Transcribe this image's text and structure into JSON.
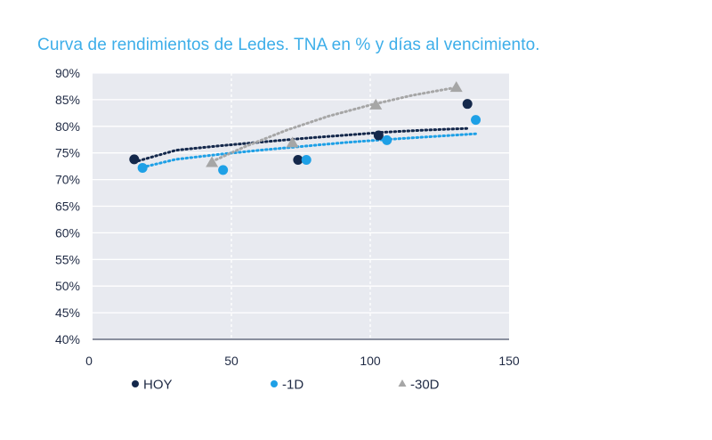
{
  "chart_data": {
    "type": "scatter",
    "title": "Curva de rendimientos de Ledes. TNA en % y días al vencimiento.",
    "xlabel": "",
    "ylabel": "",
    "xlim": [
      0,
      150
    ],
    "ylim": [
      40,
      90
    ],
    "x_ticks": [
      0,
      50,
      100,
      150
    ],
    "y_ticks": [
      40,
      45,
      50,
      55,
      60,
      65,
      70,
      75,
      80,
      85,
      90
    ],
    "y_tick_labels": [
      "40%",
      "45%",
      "50%",
      "55%",
      "60%",
      "65%",
      "70%",
      "75%",
      "80%",
      "85%",
      "90%"
    ],
    "x_tick_labels": [
      "0",
      "50",
      "100",
      "150"
    ],
    "grid": true,
    "legend_position": "bottom",
    "series": [
      {
        "name": "HOY",
        "marker": "circle",
        "color": "#14284b",
        "points": [
          [
            15,
            73.8
          ],
          [
            74,
            73.7
          ],
          [
            103,
            78.3
          ],
          [
            135,
            84.2
          ]
        ],
        "trend": [
          [
            15,
            73.3
          ],
          [
            30,
            75.5
          ],
          [
            45,
            76.3
          ],
          [
            60,
            77.0
          ],
          [
            75,
            77.7
          ],
          [
            90,
            78.3
          ],
          [
            105,
            78.9
          ],
          [
            120,
            79.3
          ],
          [
            135,
            79.6
          ]
        ]
      },
      {
        "name": "-1D",
        "marker": "circle",
        "color": "#1ea0e6",
        "points": [
          [
            18,
            72.2
          ],
          [
            47,
            71.8
          ],
          [
            77,
            73.7
          ],
          [
            106,
            77.4
          ],
          [
            138,
            81.2
          ]
        ],
        "trend": [
          [
            18,
            72.3
          ],
          [
            30,
            73.8
          ],
          [
            45,
            74.7
          ],
          [
            60,
            75.5
          ],
          [
            75,
            76.2
          ],
          [
            90,
            76.9
          ],
          [
            105,
            77.5
          ],
          [
            120,
            78.0
          ],
          [
            138,
            78.6
          ]
        ]
      },
      {
        "name": "-30D",
        "marker": "triangle",
        "color": "#a6a6a6",
        "points": [
          [
            43,
            73.2
          ],
          [
            72,
            76.9
          ],
          [
            102,
            84.0
          ],
          [
            131,
            87.3
          ]
        ],
        "trend": [
          [
            43,
            73.4
          ],
          [
            55,
            76.2
          ],
          [
            70,
            79.3
          ],
          [
            85,
            81.9
          ],
          [
            100,
            84.0
          ],
          [
            115,
            85.8
          ],
          [
            131,
            87.3
          ]
        ]
      }
    ],
    "colors": {
      "plot_bg": "#e8eaf0",
      "grid": "#ffffff",
      "axis": "#1f2a44",
      "title": "#3daee9"
    }
  }
}
